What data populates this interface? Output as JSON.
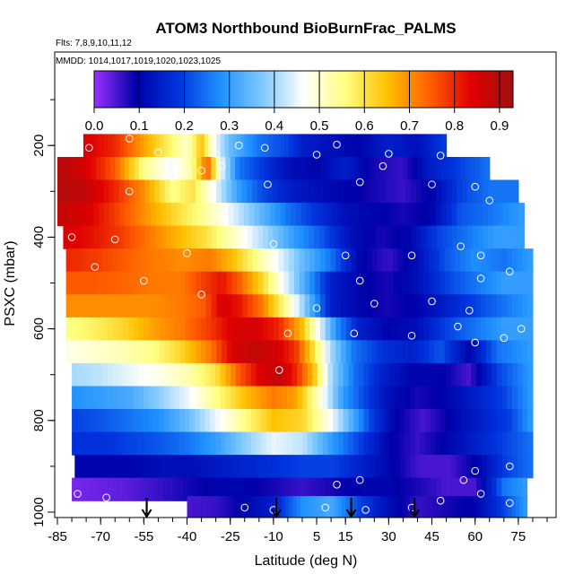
{
  "chart_data": {
    "type": "heatmap",
    "title": "ATOM3 Northbound BioBurnFrac_PALMS",
    "subtitle_flights": "Flts: 7,8,9,10,11,12",
    "subtitle_dates": "MMDD: 1014,1017,1019,1020,1023,1025",
    "xlabel": "Latitude (deg N)",
    "ylabel": "PSXC (mbar)",
    "xlim": [
      -85,
      85
    ],
    "ylim": [
      1000,
      0
    ],
    "x_ticks": [
      -85,
      -70,
      -55,
      -40,
      -25,
      -10,
      5,
      15,
      30,
      45,
      60,
      75
    ],
    "y_ticks": [
      200,
      400,
      600,
      800,
      1000
    ],
    "colorbar": {
      "min": 0.0,
      "max": 0.93,
      "ticks": [
        "0.0",
        "0.1",
        "0.2",
        "0.3",
        "0.4",
        "0.5",
        "0.6",
        "0.7",
        "0.8",
        "0.9"
      ],
      "colors": [
        "#9b30ff",
        "#0000a8",
        "#0033dd",
        "#1e90ff",
        "#7ec8ff",
        "#ffffff",
        "#ffff80",
        "#ffc000",
        "#ff6000",
        "#e00000",
        "#a01010"
      ]
    },
    "arrow_latitudes": [
      -54,
      -9,
      17,
      39
    ],
    "rows": [
      {
        "p": 200,
        "lat": [
          -76,
          50
        ],
        "lat_stops": [
          -76,
          -65,
          -50,
          -40,
          -35,
          -30,
          -25,
          -20,
          -15,
          -5,
          0,
          10,
          20,
          30,
          40,
          50
        ],
        "values": [
          0.85,
          0.8,
          0.62,
          0.5,
          0.65,
          0.45,
          0.35,
          0.3,
          0.25,
          0.2,
          0.15,
          0.12,
          0.1,
          0.15,
          0.12,
          0.2
        ]
      },
      {
        "p": 250,
        "lat": [
          -85,
          65
        ],
        "lat_stops": [
          -85,
          -75,
          -65,
          -55,
          -45,
          -38,
          -33,
          -28,
          -22,
          -15,
          -5,
          5,
          15,
          25,
          35,
          45,
          55,
          65
        ],
        "values": [
          0.9,
          0.85,
          0.75,
          0.55,
          0.45,
          0.55,
          0.75,
          0.45,
          0.25,
          0.2,
          0.12,
          0.1,
          0.15,
          0.08,
          0.06,
          0.15,
          0.2,
          0.25
        ]
      },
      {
        "p": 300,
        "lat": [
          -85,
          75
        ],
        "lat_stops": [
          -85,
          -75,
          -65,
          -55,
          -45,
          -38,
          -30,
          -22,
          -15,
          -5,
          5,
          15,
          25,
          35,
          45,
          55,
          65,
          75
        ],
        "values": [
          0.9,
          0.88,
          0.8,
          0.7,
          0.55,
          0.6,
          0.45,
          0.3,
          0.22,
          0.15,
          0.12,
          0.1,
          0.08,
          0.06,
          0.1,
          0.2,
          0.25,
          0.25
        ]
      },
      {
        "p": 350,
        "lat": [
          -85,
          77
        ],
        "lat_stops": [
          -85,
          -75,
          -65,
          -55,
          -45,
          -35,
          -25,
          -15,
          -5,
          5,
          15,
          25,
          35,
          45,
          55,
          65,
          77
        ],
        "values": [
          0.88,
          0.85,
          0.78,
          0.7,
          0.62,
          0.55,
          0.45,
          0.35,
          0.25,
          0.18,
          0.12,
          0.1,
          0.08,
          0.1,
          0.22,
          0.25,
          0.3
        ]
      },
      {
        "p": 400,
        "lat": [
          -83,
          77
        ],
        "lat_stops": [
          -83,
          -73,
          -63,
          -53,
          -43,
          -33,
          -23,
          -13,
          -3,
          7,
          17,
          27,
          37,
          47,
          57,
          67,
          77
        ],
        "values": [
          0.85,
          0.82,
          0.78,
          0.72,
          0.66,
          0.6,
          0.5,
          0.4,
          0.3,
          0.22,
          0.12,
          0.08,
          0.1,
          0.2,
          0.25,
          0.3,
          0.3
        ]
      },
      {
        "p": 450,
        "lat": [
          -82,
          80
        ],
        "lat_stops": [
          -82,
          -72,
          -62,
          -52,
          -42,
          -32,
          -24,
          -16,
          -8,
          0,
          10,
          20,
          30,
          40,
          50,
          60,
          70,
          80
        ],
        "values": [
          0.8,
          0.78,
          0.75,
          0.72,
          0.7,
          0.72,
          0.65,
          0.55,
          0.45,
          0.35,
          0.25,
          0.1,
          0.06,
          0.12,
          0.22,
          0.28,
          0.25,
          0.3
        ]
      },
      {
        "p": 500,
        "lat": [
          -82,
          80
        ],
        "lat_stops": [
          -82,
          -72,
          -62,
          -52,
          -42,
          -34,
          -28,
          -22,
          -14,
          -6,
          2,
          10,
          20,
          30,
          40,
          50,
          60,
          70,
          80
        ],
        "values": [
          0.75,
          0.75,
          0.74,
          0.72,
          0.72,
          0.78,
          0.82,
          0.75,
          0.62,
          0.45,
          0.3,
          0.15,
          0.1,
          0.08,
          0.12,
          0.2,
          0.25,
          0.3,
          0.3
        ]
      },
      {
        "p": 550,
        "lat": [
          -82,
          80
        ],
        "lat_stops": [
          -82,
          -72,
          -62,
          -52,
          -42,
          -34,
          -28,
          -22,
          -14,
          -6,
          2,
          10,
          20,
          30,
          40,
          50,
          60,
          70,
          80
        ],
        "values": [
          0.7,
          0.7,
          0.7,
          0.7,
          0.72,
          0.75,
          0.85,
          0.82,
          0.72,
          0.55,
          0.35,
          0.15,
          0.1,
          0.08,
          0.1,
          0.15,
          0.2,
          0.25,
          0.3
        ]
      },
      {
        "p": 600,
        "lat": [
          -82,
          80
        ],
        "lat_stops": [
          -82,
          -72,
          -62,
          -52,
          -42,
          -32,
          -24,
          -16,
          -8,
          0,
          6,
          12,
          20,
          30,
          40,
          50,
          60,
          70,
          80
        ],
        "values": [
          0.55,
          0.58,
          0.62,
          0.68,
          0.72,
          0.78,
          0.85,
          0.85,
          0.8,
          0.65,
          0.45,
          0.28,
          0.15,
          0.1,
          0.12,
          0.2,
          0.25,
          0.3,
          0.3
        ]
      },
      {
        "p": 650,
        "lat": [
          -82,
          80
        ],
        "lat_stops": [
          -82,
          -72,
          -62,
          -52,
          -42,
          -32,
          -24,
          -16,
          -8,
          -2,
          4,
          10,
          18,
          28,
          38,
          48,
          58,
          68,
          80
        ],
        "values": [
          0.48,
          0.5,
          0.52,
          0.55,
          0.62,
          0.72,
          0.85,
          0.88,
          0.85,
          0.78,
          0.6,
          0.4,
          0.25,
          0.18,
          0.15,
          0.22,
          0.1,
          0.25,
          0.3
        ]
      },
      {
        "p": 700,
        "lat": [
          -80,
          80
        ],
        "lat_stops": [
          -80,
          -70,
          -60,
          -50,
          -40,
          -30,
          -22,
          -14,
          -8,
          -2,
          4,
          10,
          18,
          28,
          38,
          48,
          58,
          68,
          80
        ],
        "values": [
          0.4,
          0.42,
          0.45,
          0.48,
          0.52,
          0.6,
          0.75,
          0.85,
          0.88,
          0.8,
          0.65,
          0.4,
          0.25,
          0.15,
          0.1,
          0.1,
          0.05,
          0.2,
          0.3
        ]
      },
      {
        "p": 750,
        "lat": [
          -80,
          80
        ],
        "lat_stops": [
          -80,
          -70,
          -60,
          -50,
          -40,
          -30,
          -20,
          -10,
          -2,
          6,
          14,
          22,
          30,
          40,
          50,
          60,
          70,
          80
        ],
        "values": [
          0.28,
          0.3,
          0.32,
          0.38,
          0.45,
          0.55,
          0.65,
          0.72,
          0.68,
          0.5,
          0.3,
          0.2,
          0.12,
          0.08,
          0.1,
          0.15,
          0.2,
          0.3
        ]
      },
      {
        "p": 800,
        "lat": [
          -80,
          80
        ],
        "lat_stops": [
          -80,
          -70,
          -60,
          -50,
          -40,
          -30,
          -20,
          -10,
          0,
          8,
          16,
          24,
          32,
          42,
          52,
          62,
          72,
          80
        ],
        "values": [
          0.2,
          0.22,
          0.25,
          0.28,
          0.35,
          0.45,
          0.55,
          0.65,
          0.62,
          0.5,
          0.35,
          0.2,
          0.1,
          0.05,
          0.1,
          0.15,
          0.2,
          0.3
        ]
      },
      {
        "p": 850,
        "lat": [
          -80,
          80
        ],
        "lat_stops": [
          -80,
          -70,
          -60,
          -50,
          -40,
          -30,
          -20,
          -10,
          0,
          10,
          20,
          30,
          40,
          50,
          60,
          70,
          80
        ],
        "values": [
          0.18,
          0.18,
          0.2,
          0.22,
          0.25,
          0.3,
          0.38,
          0.45,
          0.42,
          0.3,
          0.2,
          0.1,
          0.06,
          0.1,
          0.15,
          0.2,
          0.25
        ]
      },
      {
        "p": 900,
        "lat": [
          -79,
          80
        ],
        "lat_stops": [
          -79,
          -69,
          -59,
          -49,
          -39,
          -29,
          -19,
          -9,
          1,
          11,
          21,
          31,
          41,
          51,
          61,
          71,
          80
        ],
        "values": [
          0.1,
          0.1,
          0.1,
          0.12,
          0.12,
          0.14,
          0.16,
          0.18,
          0.2,
          0.2,
          0.15,
          0.1,
          0.05,
          0.05,
          0.1,
          0.2,
          0.25
        ]
      },
      {
        "p": 950,
        "lat": [
          -80,
          78
        ],
        "lat_stops": [
          -80,
          -70,
          -60,
          -50,
          -40,
          -30,
          -20,
          -10,
          0,
          10,
          20,
          30,
          40,
          50,
          60,
          70,
          78
        ],
        "values": [
          0.02,
          0.03,
          0.04,
          0.06,
          0.08,
          0.1,
          0.1,
          0.08,
          0.06,
          0.08,
          0.1,
          0.1,
          0.08,
          0.05,
          0.05,
          0.25,
          0.3
        ]
      },
      {
        "p": 990,
        "lat": [
          -40,
          78
        ],
        "lat_stops": [
          -40,
          -30,
          -20,
          -10,
          0,
          10,
          20,
          30,
          40,
          50,
          60,
          70,
          78
        ],
        "values": [
          0.05,
          0.06,
          0.1,
          0.15,
          0.28,
          0.32,
          0.2,
          0.12,
          0.06,
          0.08,
          0.1,
          0.2,
          0.3
        ]
      }
    ],
    "samples": [
      {
        "lat": -60,
        "p": 185
      },
      {
        "lat": -74,
        "p": 205
      },
      {
        "lat": -50,
        "p": 215
      },
      {
        "lat": -30,
        "p": 218
      },
      {
        "lat": -22,
        "p": 200
      },
      {
        "lat": -13,
        "p": 205
      },
      {
        "lat": 5,
        "p": 220
      },
      {
        "lat": 12,
        "p": 198
      },
      {
        "lat": 30,
        "p": 218
      },
      {
        "lat": 48,
        "p": 222
      },
      {
        "lat": -45,
        "p": 260
      },
      {
        "lat": -40,
        "p": 255
      },
      {
        "lat": -35,
        "p": 255
      },
      {
        "lat": -28,
        "p": 245
      },
      {
        "lat": 28,
        "p": 245
      },
      {
        "lat": -60,
        "p": 300
      },
      {
        "lat": -12,
        "p": 285
      },
      {
        "lat": 20,
        "p": 280
      },
      {
        "lat": 45,
        "p": 285
      },
      {
        "lat": 60,
        "p": 290
      },
      {
        "lat": 65,
        "p": 320
      },
      {
        "lat": -80,
        "p": 400
      },
      {
        "lat": -65,
        "p": 405
      },
      {
        "lat": -40,
        "p": 435
      },
      {
        "lat": -10,
        "p": 415
      },
      {
        "lat": 15,
        "p": 440
      },
      {
        "lat": 38,
        "p": 440
      },
      {
        "lat": 55,
        "p": 420
      },
      {
        "lat": 62,
        "p": 440
      },
      {
        "lat": 72,
        "p": 475
      },
      {
        "lat": -72,
        "p": 465
      },
      {
        "lat": -55,
        "p": 495
      },
      {
        "lat": 20,
        "p": 495
      },
      {
        "lat": 62,
        "p": 490
      },
      {
        "lat": -35,
        "p": 525
      },
      {
        "lat": 5,
        "p": 555
      },
      {
        "lat": 25,
        "p": 545
      },
      {
        "lat": 45,
        "p": 540
      },
      {
        "lat": 58,
        "p": 560
      },
      {
        "lat": -5,
        "p": 610
      },
      {
        "lat": 18,
        "p": 610
      },
      {
        "lat": 38,
        "p": 615
      },
      {
        "lat": 54,
        "p": 595
      },
      {
        "lat": 60,
        "p": 630
      },
      {
        "lat": 70,
        "p": 620
      },
      {
        "lat": 76,
        "p": 600
      },
      {
        "lat": -8,
        "p": 690
      },
      {
        "lat": 72,
        "p": 900
      },
      {
        "lat": 60,
        "p": 910
      },
      {
        "lat": 56,
        "p": 930
      },
      {
        "lat": 62,
        "p": 960
      },
      {
        "lat": 72,
        "p": 980
      },
      {
        "lat": -78,
        "p": 960
      },
      {
        "lat": -68,
        "p": 968
      },
      {
        "lat": -20,
        "p": 990
      },
      {
        "lat": -10,
        "p": 995
      },
      {
        "lat": 8,
        "p": 990
      },
      {
        "lat": 22,
        "p": 995
      },
      {
        "lat": 38,
        "p": 990
      },
      {
        "lat": 48,
        "p": 975
      },
      {
        "lat": 12,
        "p": 940
      },
      {
        "lat": 20,
        "p": 930
      }
    ]
  }
}
